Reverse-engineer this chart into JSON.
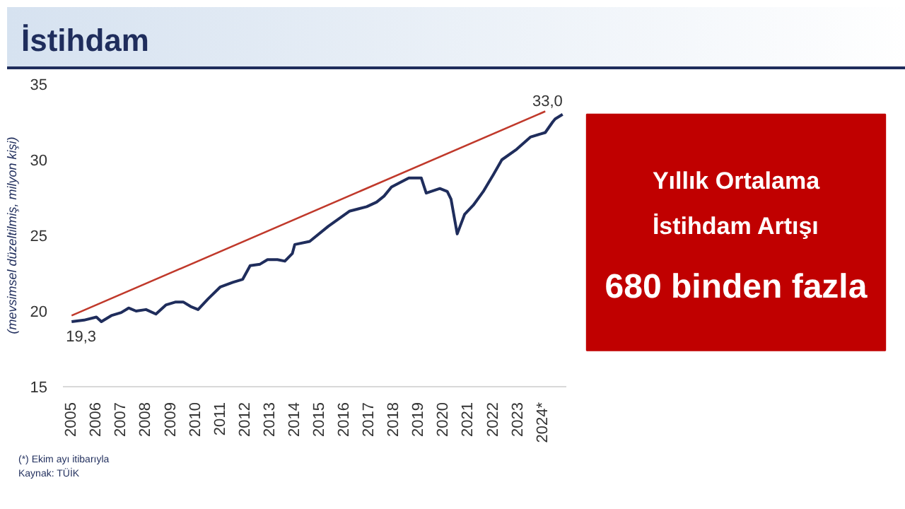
{
  "chart_data": [
    {
      "type": "line",
      "title": "İstihdam",
      "ylabel": "(mevsimsel düzeltilmiş, milyon kişi)",
      "series": [
        {
          "color": "#1f2d5c",
          "x": [
            2005.0,
            2005.5,
            2006.0,
            2006.2,
            2006.6,
            2007.0,
            2007.3,
            2007.6,
            2008.0,
            2008.4,
            2008.8,
            2009.2,
            2009.5,
            2009.8,
            2010.1,
            2010.5,
            2011.0,
            2011.5,
            2011.9,
            2012.2,
            2012.6,
            2012.9,
            2013.3,
            2013.6,
            2013.9,
            2014.0,
            2014.6,
            2015.35,
            2016.2,
            2016.9,
            2017.3,
            2017.6,
            2017.9,
            2018.6,
            2019.1,
            2019.3,
            2019.85,
            2020.15,
            2020.3,
            2020.55,
            2020.85,
            2021.2,
            2021.6,
            2022.0,
            2022.35,
            2022.95,
            2023.5,
            2024.1,
            2024.4,
            2024.5,
            2024.8
          ],
          "values": [
            19.3,
            19.4,
            19.6,
            19.3,
            19.7,
            19.9,
            20.2,
            20.0,
            20.1,
            19.8,
            20.4,
            20.6,
            20.6,
            20.3,
            20.1,
            20.8,
            21.6,
            21.9,
            22.1,
            23.0,
            23.1,
            23.4,
            23.4,
            23.3,
            23.8,
            24.4,
            24.6,
            25.6,
            26.6,
            26.9,
            27.2,
            27.6,
            28.2,
            28.8,
            28.8,
            27.8,
            28.1,
            27.9,
            27.4,
            25.1,
            26.4,
            27.0,
            27.9,
            29.0,
            30.0,
            30.7,
            31.5,
            31.8,
            32.5,
            32.7,
            33.0
          ]
        },
        {
          "type": "line",
          "color": "#c0392b",
          "x": [
            2005.0,
            2024.1
          ],
          "values": [
            19.7,
            33.2
          ]
        }
      ],
      "xlim": [
        2004.65,
        2024.95
      ],
      "ylim": [
        15,
        35
      ],
      "xticks": [
        2005,
        2006,
        2007,
        2008,
        2009,
        2010,
        2011,
        2012,
        2013,
        2014,
        2015,
        2016,
        2017,
        2018,
        2019,
        2020,
        2021,
        2022,
        2023,
        {
          "value": 2024,
          "label": "2024*"
        }
      ],
      "yticks": [
        15,
        20,
        25,
        30,
        35
      ],
      "grid": false,
      "marker": "none",
      "annotations": [
        {
          "text": "19,3",
          "x": 2005.0,
          "y": 19.3
        },
        {
          "text": "33,0",
          "x": 2024.8,
          "y": 33.0
        },
        "(*) Ekim ayı itibarıyla",
        "Kaynak: TÜİK"
      ]
    },
    {
      "type": "other",
      "annotations": [
        "Yıllık Ortalama",
        "İstihdam Artışı",
        "680 binden fazla"
      ],
      "color": "#c00000"
    }
  ]
}
